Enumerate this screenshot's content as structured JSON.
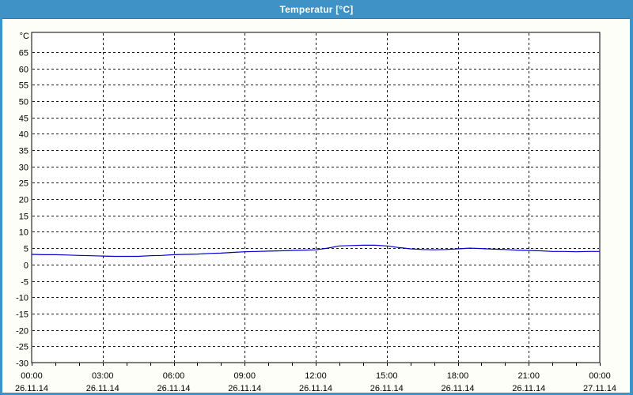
{
  "window": {
    "title": "Temperatur [°C]",
    "titlebar_color": "#3e92c5",
    "border_color": "#3e92c5",
    "content_bg": "#fcfef7"
  },
  "chart_data": {
    "type": "line",
    "title": "Temperatur [°C]",
    "unit_label": "°C",
    "grid": true,
    "legend": false,
    "plot_bg": "#ffffff",
    "axis_color": "#000000",
    "grid_color": "#1a1a1a",
    "label_color": "#000000",
    "ylim": [
      -30,
      71
    ],
    "yticks": [
      65,
      60,
      55,
      50,
      45,
      40,
      35,
      30,
      25,
      20,
      15,
      10,
      5,
      0,
      -5,
      -10,
      -15,
      -20,
      -25,
      -30
    ],
    "xlim_hours": [
      0,
      24
    ],
    "x_minor_tick_hours": 1,
    "x_major_ticks": [
      {
        "hours": 0,
        "time": "00:00",
        "date": "26.11.14"
      },
      {
        "hours": 3,
        "time": "03:00",
        "date": "26.11.14"
      },
      {
        "hours": 6,
        "time": "06:00",
        "date": "26.11.14"
      },
      {
        "hours": 9,
        "time": "09:00",
        "date": "26.11.14"
      },
      {
        "hours": 12,
        "time": "12:00",
        "date": "26.11.14"
      },
      {
        "hours": 15,
        "time": "15:00",
        "date": "26.11.14"
      },
      {
        "hours": 18,
        "time": "18:00",
        "date": "26.11.14"
      },
      {
        "hours": 21,
        "time": "21:00",
        "date": "26.11.14"
      },
      {
        "hours": 24,
        "time": "00:00",
        "date": "27.11.14"
      }
    ],
    "series": [
      {
        "name": "Temperatur",
        "color": "#0000cc",
        "x_hours": [
          0,
          0.5,
          1,
          1.5,
          2,
          2.5,
          3,
          3.5,
          4,
          4.5,
          5,
          5.5,
          6,
          6.5,
          7,
          7.5,
          8,
          8.5,
          9,
          9.5,
          10,
          10.5,
          11,
          11.5,
          12,
          12.5,
          13,
          13.5,
          14,
          14.5,
          15,
          15.5,
          16,
          16.5,
          17,
          17.5,
          18,
          18.5,
          19,
          19.5,
          20,
          20.5,
          21,
          21.5,
          22,
          22.5,
          23,
          23.5,
          24
        ],
        "values": [
          3.1,
          3.0,
          3.0,
          2.9,
          2.8,
          2.7,
          2.6,
          2.5,
          2.5,
          2.5,
          2.7,
          2.8,
          3.0,
          3.1,
          3.2,
          3.4,
          3.5,
          3.7,
          3.9,
          4.0,
          4.1,
          4.2,
          4.3,
          4.4,
          4.5,
          5.0,
          5.7,
          5.8,
          5.9,
          5.9,
          5.7,
          5.2,
          4.8,
          4.6,
          4.5,
          4.6,
          4.8,
          5.0,
          4.9,
          4.7,
          4.6,
          4.4,
          4.3,
          4.2,
          4.0,
          4.0,
          3.9,
          4.0,
          4.0
        ]
      }
    ]
  }
}
